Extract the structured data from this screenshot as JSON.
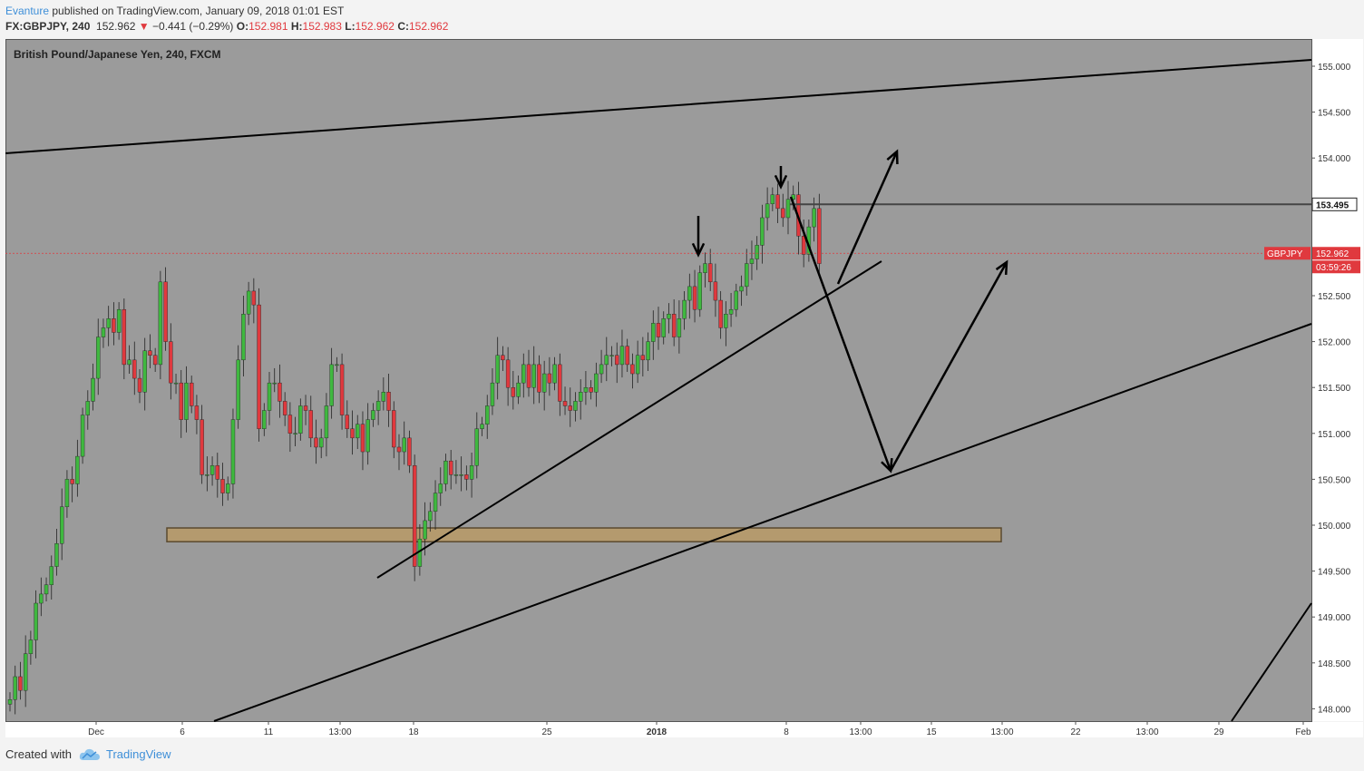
{
  "header": {
    "author": "Evanture",
    "published": "published on TradingView.com, January 09, 2018 01:01 EST"
  },
  "symbol_line": {
    "symbol": "FX:GBPJPY, 240",
    "last": "152.962",
    "arrow": "▼",
    "change": "−0.441 (−0.29%)",
    "o_label": "O:",
    "o": "152.981",
    "h_label": "H:",
    "h": "152.983",
    "l_label": "L:",
    "l": "152.962",
    "c_label": "C:",
    "c": "152.962"
  },
  "chart_data": {
    "type": "candlestick",
    "title": "British Pound/Japanese Yen, 240, FXCM",
    "background": "#9b9b9b",
    "up_color": "#3fb83f",
    "down_color": "#e0393e",
    "y_ticks": [
      "155.000",
      "154.500",
      "154.000",
      "153.000",
      "152.500",
      "152.000",
      "151.500",
      "151.000",
      "150.500",
      "150.000",
      "149.500",
      "149.000",
      "148.500",
      "148.000"
    ],
    "ylim": [
      147.9,
      155.3
    ],
    "x_ticks": [
      "Dec",
      "6",
      "11",
      "13:00",
      "18",
      "25",
      "2018",
      "8",
      "13:00",
      "15",
      "13:00",
      "22",
      "13:00",
      "29",
      "Feb"
    ],
    "horizontal_level": {
      "value": "153.495",
      "price": 153.495
    },
    "current_price": {
      "label": "GBPJPY",
      "value": "152.962",
      "countdown": "03:59:26",
      "price": 152.962
    },
    "support_zone": {
      "from": 149.82,
      "to": 149.97
    },
    "closes": [
      148.1,
      148.35,
      148.2,
      148.6,
      148.75,
      149.15,
      149.25,
      149.35,
      149.55,
      149.8,
      150.2,
      150.5,
      150.45,
      150.75,
      151.2,
      151.35,
      151.6,
      152.05,
      152.15,
      152.25,
      152.1,
      152.35,
      151.75,
      151.8,
      151.6,
      151.45,
      151.9,
      151.85,
      151.75,
      152.65,
      152.0,
      151.55,
      151.55,
      151.15,
      151.55,
      151.3,
      151.15,
      150.55,
      150.55,
      150.65,
      150.5,
      150.35,
      150.45,
      151.15,
      151.8,
      152.3,
      152.55,
      152.4,
      151.05,
      151.25,
      151.55,
      151.55,
      151.35,
      151.2,
      151.0,
      151.0,
      151.3,
      151.25,
      150.95,
      150.85,
      150.95,
      151.3,
      151.75,
      151.75,
      151.2,
      151.05,
      150.95,
      151.1,
      150.8,
      151.15,
      151.25,
      151.35,
      151.45,
      151.25,
      150.85,
      150.8,
      150.95,
      150.65,
      149.55,
      149.85,
      150.05,
      150.15,
      150.35,
      150.45,
      150.7,
      150.55,
      150.55,
      150.55,
      150.5,
      150.65,
      151.05,
      151.1,
      151.3,
      151.55,
      151.85,
      151.8,
      151.5,
      151.4,
      151.55,
      151.75,
      151.5,
      151.75,
      151.45,
      151.65,
      151.55,
      151.75,
      151.35,
      151.3,
      151.25,
      151.35,
      151.45,
      151.5,
      151.45,
      151.65,
      151.75,
      151.85,
      151.85,
      151.75,
      151.95,
      151.75,
      151.65,
      151.85,
      151.8,
      152.0,
      152.2,
      152.05,
      152.25,
      152.3,
      152.05,
      152.25,
      152.45,
      152.6,
      152.35,
      152.75,
      152.85,
      152.65,
      152.45,
      152.15,
      152.3,
      152.35,
      152.55,
      152.6,
      152.85,
      152.9,
      153.05,
      153.35,
      153.5,
      153.6,
      153.45,
      153.35,
      153.55,
      153.6,
      153.15,
      152.95,
      153.25,
      153.45,
      152.85
    ]
  },
  "footer": {
    "created_with": "Created with",
    "brand": "TradingView"
  }
}
